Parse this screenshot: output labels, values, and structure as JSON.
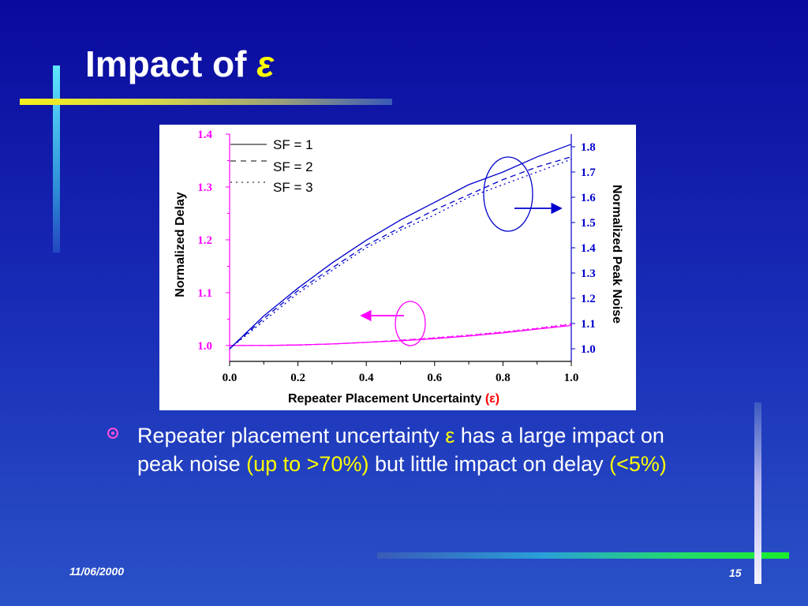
{
  "slide": {
    "title_text": "Impact of",
    "title_symbol": "ε",
    "date": "11/06/2000",
    "page_number": "15",
    "colors": {
      "background": "#1a2fb8",
      "title": "#ffffff",
      "accent": "#ffff00",
      "bullet": "#ff4fd8"
    }
  },
  "bullet": {
    "icon": "target-bullet-icon",
    "part1": "Repeater placement uncertainty ",
    "symbol": "ε",
    "part2": " has a large impact on peak noise ",
    "highlight1": "(up to >70%)",
    "part3": " but little impact on delay ",
    "highlight2": "(<5%)"
  },
  "chart_data": {
    "type": "line",
    "xlabel_text": "Repeater Placement Uncertainty ",
    "xlabel_symbol": "(ε)",
    "ylabel_left": "Normalized Delay",
    "ylabel_right": "Normalized Peak Noise",
    "xlim": [
      0.0,
      1.0
    ],
    "ylim_left": [
      0.97,
      1.4
    ],
    "ylim_right": [
      0.95,
      1.85
    ],
    "x_ticks": [
      "0.0",
      "0.2",
      "0.4",
      "0.6",
      "0.8",
      "1.0"
    ],
    "y_ticks_left": [
      "1.0",
      "1.1",
      "1.2",
      "1.3",
      "1.4"
    ],
    "y_ticks_right": [
      "1.0",
      "1.1",
      "1.2",
      "1.3",
      "1.4",
      "1.5",
      "1.6",
      "1.7",
      "1.8"
    ],
    "colors": {
      "delay": "#ff00ff",
      "noise": "#0000cc",
      "left_axis": "#ff00ff",
      "right_axis": "#0000cc"
    },
    "legend": [
      {
        "name": "SF = 1",
        "dash": "solid"
      },
      {
        "name": "SF = 2",
        "dash": "dashed"
      },
      {
        "name": "SF = 3",
        "dash": "dotted"
      }
    ],
    "x": [
      0.0,
      0.1,
      0.2,
      0.3,
      0.4,
      0.5,
      0.6,
      0.7,
      0.8,
      0.9,
      1.0
    ],
    "series": [
      {
        "name": "SF = 1",
        "group": "delay",
        "axis": "left",
        "dash": "solid",
        "values": [
          1.0,
          1.0,
          1.001,
          1.003,
          1.006,
          1.009,
          1.013,
          1.018,
          1.024,
          1.031,
          1.038
        ]
      },
      {
        "name": "SF = 2",
        "group": "delay",
        "axis": "left",
        "dash": "dashed",
        "values": [
          1.0,
          1.0,
          1.001,
          1.003,
          1.006,
          1.01,
          1.014,
          1.019,
          1.025,
          1.032,
          1.04
        ]
      },
      {
        "name": "SF = 3",
        "group": "delay",
        "axis": "left",
        "dash": "dotted",
        "values": [
          1.0,
          1.0,
          1.001,
          1.003,
          1.006,
          1.01,
          1.015,
          1.02,
          1.026,
          1.033,
          1.041
        ]
      },
      {
        "name": "SF = 1",
        "group": "noise",
        "axis": "right",
        "dash": "solid",
        "values": [
          1.0,
          1.13,
          1.24,
          1.34,
          1.43,
          1.51,
          1.58,
          1.65,
          1.7,
          1.76,
          1.81
        ]
      },
      {
        "name": "SF = 2",
        "group": "noise",
        "axis": "right",
        "dash": "dashed",
        "values": [
          1.0,
          1.12,
          1.23,
          1.32,
          1.41,
          1.48,
          1.55,
          1.61,
          1.67,
          1.72,
          1.76
        ]
      },
      {
        "name": "SF = 3",
        "group": "noise",
        "axis": "right",
        "dash": "dotted",
        "values": [
          1.0,
          1.11,
          1.22,
          1.31,
          1.4,
          1.47,
          1.53,
          1.6,
          1.65,
          1.7,
          1.75
        ]
      }
    ]
  }
}
